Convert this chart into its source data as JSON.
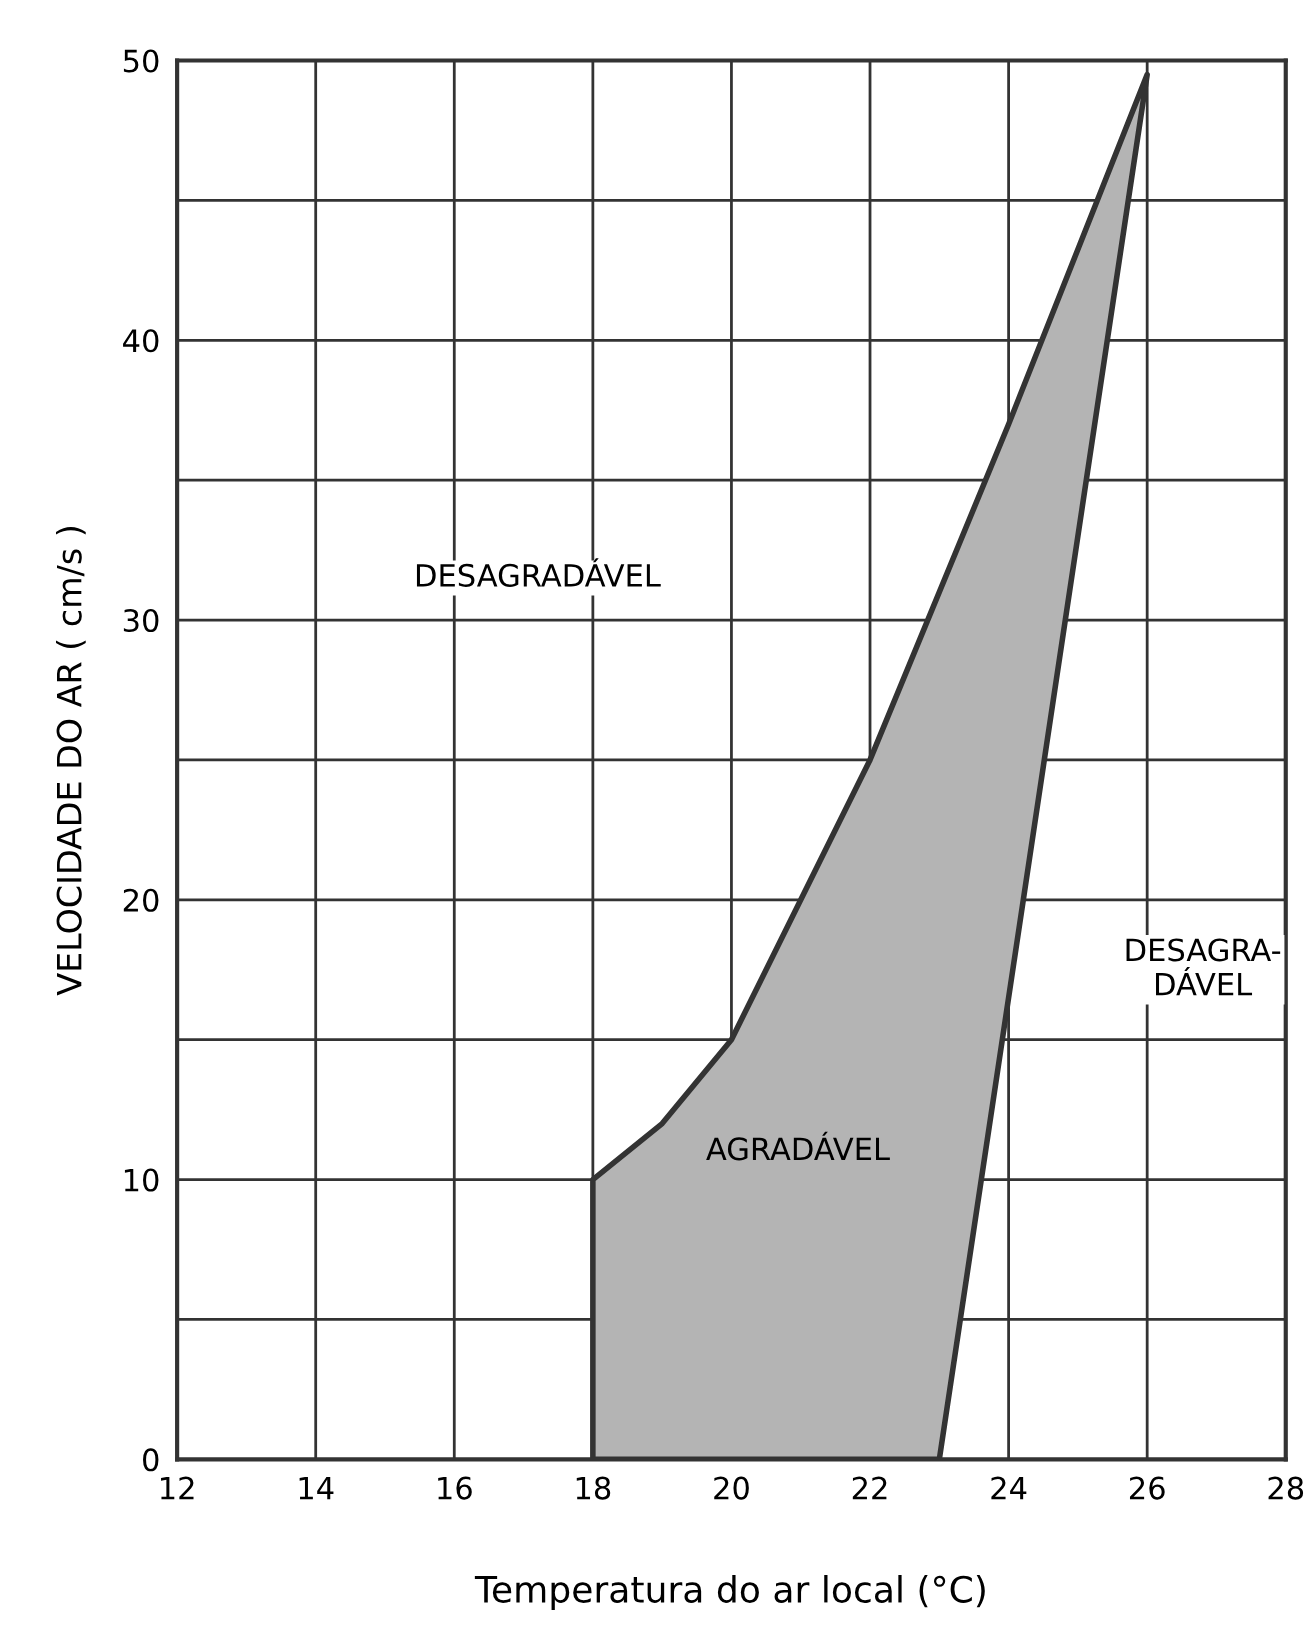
{
  "chart_data": {
    "type": "area",
    "xlabel": "Temperatura do ar local (°C)",
    "ylabel": "VELOCIDADE DO AR ( cm/s )",
    "series": [
      {
        "color": "#b4b4b4",
        "x": [
          18,
          18,
          19,
          20,
          22,
          24,
          26,
          23
        ],
        "values": [
          0,
          10,
          12,
          15,
          25,
          37,
          49.5,
          0
        ]
      }
    ],
    "xlim": [
      12,
      28
    ],
    "ylim": [
      0,
      50
    ],
    "xticks": [
      12,
      14,
      16,
      18,
      20,
      22,
      24,
      26,
      28
    ],
    "yticks": [
      0,
      {
        "value": 5,
        "label": null
      },
      10,
      {
        "value": 15,
        "label": null
      },
      20,
      {
        "value": 25,
        "label": null
      },
      30,
      {
        "value": 35,
        "label": null
      },
      40,
      {
        "value": 45,
        "label": null
      },
      50
    ],
    "grid": true,
    "annotations": [
      "DESAGRADÁVEL",
      "AGRADÁVEL",
      "DESAGRA-\nDÁVEL"
    ]
  }
}
